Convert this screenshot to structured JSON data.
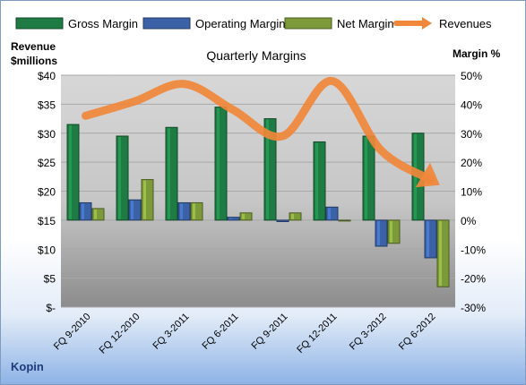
{
  "chart_data": {
    "type": "bar",
    "title": "Quarterly Margins",
    "company": "Kopin",
    "y_left_label_line1": "Revenue",
    "y_left_label_line2": "$millions",
    "y_right_label": "Margin %",
    "categories": [
      "FQ 9-2010",
      "FQ 12-2010",
      "FQ 3-2011",
      "FQ 6-2011",
      "FQ 9-2011",
      "FQ 12-2011",
      "FQ 3-2012",
      "FQ 6-2012"
    ],
    "y_left_ticks": [
      "$-",
      "$5",
      "$10",
      "$15",
      "$20",
      "$25",
      "$30",
      "$35",
      "$40"
    ],
    "y_left_range": [
      0,
      40
    ],
    "y_right_ticks": [
      "-30%",
      "-20%",
      "-10%",
      "0%",
      "10%",
      "20%",
      "30%",
      "40%",
      "50%"
    ],
    "y_right_range": [
      -30,
      50
    ],
    "grid": true,
    "legend_position": "top",
    "series": [
      {
        "name": "Gross Margin",
        "axis": "right",
        "color": "#1e7b43",
        "values": [
          33,
          29,
          32,
          39,
          35,
          27,
          29,
          30
        ]
      },
      {
        "name": "Operating Margin",
        "axis": "right",
        "color": "#3b62a6",
        "values": [
          6,
          7,
          6,
          1,
          -0.5,
          4.5,
          -9,
          -13
        ]
      },
      {
        "name": "Net Margin",
        "axis": "right",
        "color": "#7d9a3a",
        "values": [
          4,
          14,
          6,
          2.5,
          2.5,
          0,
          -8,
          -23
        ]
      },
      {
        "name": "Revenues",
        "type": "line",
        "axis": "left",
        "color": "#f0873a",
        "values": [
          33,
          35.5,
          38.5,
          34,
          29.5,
          39,
          27,
          22
        ]
      }
    ]
  }
}
